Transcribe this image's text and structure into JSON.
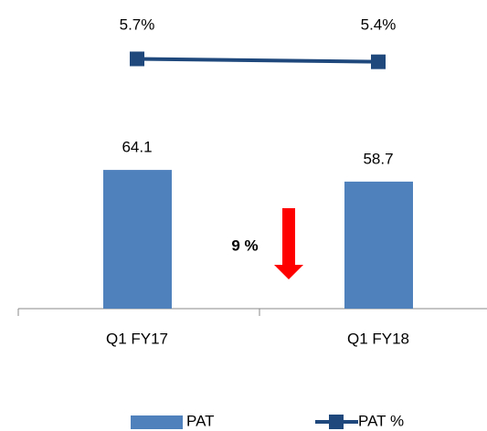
{
  "chart_data": {
    "type": "bar-line",
    "categories": [
      "Q1 FY17",
      "Q1 FY18"
    ],
    "series": [
      {
        "name": "PAT",
        "type": "bar",
        "color": "#4f81bd",
        "values": [
          64.1,
          58.7
        ]
      },
      {
        "name": "PAT %",
        "type": "line",
        "axis": "y2",
        "color": "#1f497d",
        "values": [
          5.7,
          5.4
        ],
        "value_labels": [
          "5.7%",
          "5.4%"
        ]
      }
    ],
    "ylim": [
      0,
      100
    ],
    "y2lim": [
      -20,
      8
    ],
    "annotation": {
      "text": "9 %",
      "color": "#ff0000"
    },
    "legend": "bottom"
  }
}
